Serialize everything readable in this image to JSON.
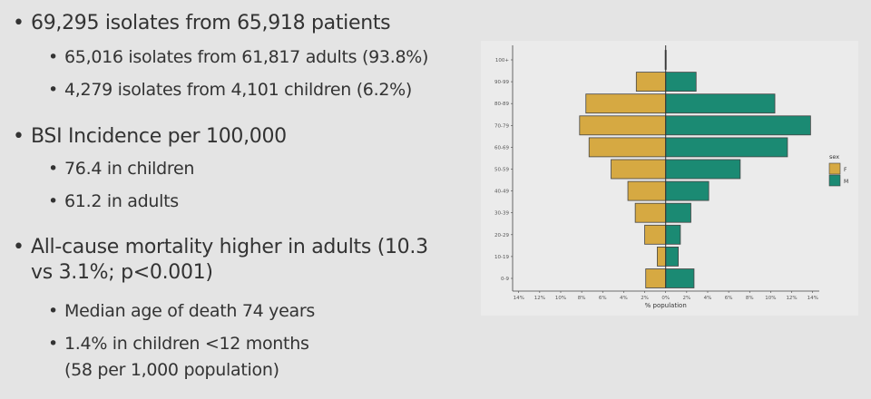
{
  "bullets": [
    {
      "level": 1,
      "lines": [
        "69,295 isolates from 65,918 patients"
      ]
    },
    {
      "level": 2,
      "lines": [
        "65,016 isolates from 61,817 adults (93.8%)"
      ]
    },
    {
      "level": 2,
      "lines": [
        "4,279 isolates from 4,101 children (6.2%)"
      ]
    },
    {
      "level": 1,
      "lines": [
        "BSI Incidence per 100,000"
      ]
    },
    {
      "level": 2,
      "lines": [
        "76.4 in children"
      ]
    },
    {
      "level": 2,
      "lines": [
        "61.2 in adults"
      ]
    },
    {
      "level": 1,
      "lines": [
        "All-cause mortality higher in adults (10.3",
        "vs 3.1%; p<0.001)"
      ]
    },
    {
      "level": 2,
      "lines": [
        "Median age of death 74 years"
      ]
    },
    {
      "level": 2,
      "lines": [
        "1.4% in children <12 months",
        "(58 per 1,000 population)"
      ]
    }
  ],
  "chart_data": {
    "type": "bar",
    "orientation": "horizontal-pyramid",
    "categories": [
      "100+",
      "90-99",
      "80-89",
      "70-79",
      "60-69",
      "50-59",
      "40-49",
      "30-39",
      "20-29",
      "10-19",
      "0-9"
    ],
    "series": [
      {
        "name": "F",
        "color": "#d6a942",
        "values": [
          0.05,
          2.8,
          7.6,
          8.2,
          7.3,
          5.2,
          3.6,
          2.9,
          2.0,
          0.8,
          1.9
        ]
      },
      {
        "name": "M",
        "color": "#1b8a73",
        "values": [
          0.05,
          2.9,
          10.4,
          13.8,
          11.6,
          7.1,
          4.1,
          2.4,
          1.4,
          1.2,
          2.7
        ]
      }
    ],
    "xlabel": "% population",
    "xticks": [
      "14%",
      "12%",
      "10%",
      "8%",
      "6%",
      "4%",
      "2%",
      "0%",
      "2%",
      "4%",
      "6%",
      "8%",
      "10%",
      "12%",
      "14%"
    ],
    "xlim": [
      -14,
      14
    ],
    "legend_title": "sex",
    "legend_position": "right",
    "grid": false
  }
}
